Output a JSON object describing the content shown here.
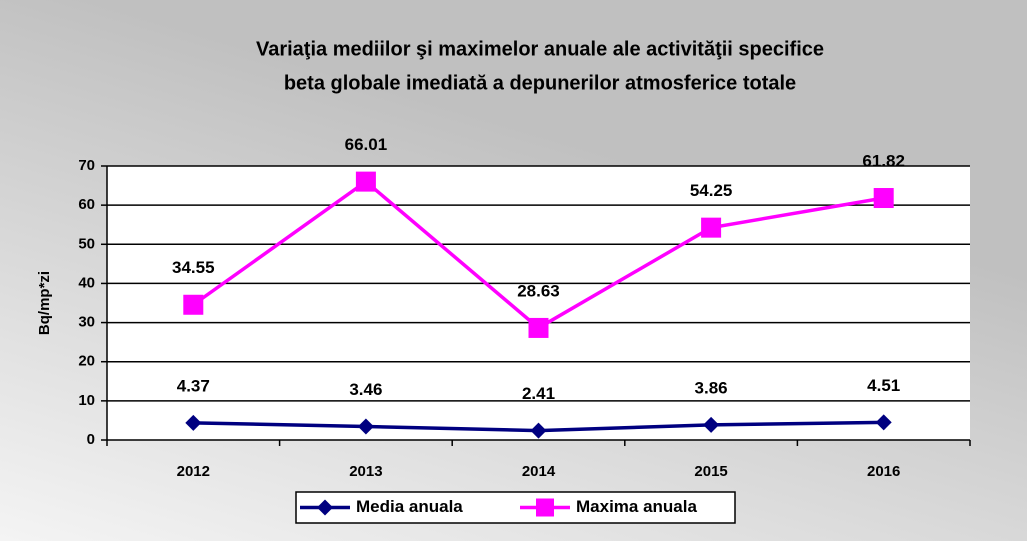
{
  "chart_data": {
    "type": "line",
    "title": [
      "Variaţia mediilor şi maximelor anuale ale activităţii specifice",
      "beta globale imediată a depunerilor atmosferice totale"
    ],
    "y_label": "Bq/mp*zi",
    "categories": [
      "2012",
      "2013",
      "2014",
      "2015",
      "2016"
    ],
    "series": [
      {
        "name": "Media anuala",
        "color": "#000080",
        "marker": "diamond",
        "values": [
          4.37,
          3.46,
          2.41,
          3.86,
          4.51
        ]
      },
      {
        "name": "Maxima anuala",
        "color": "#ff00ff",
        "marker": "square",
        "values": [
          34.55,
          66.01,
          28.63,
          54.25,
          61.82
        ]
      }
    ],
    "ylim": [
      0,
      70
    ],
    "yticks": [
      0,
      10,
      20,
      30,
      40,
      50,
      60,
      70
    ],
    "grid": true,
    "legend": "bottom"
  }
}
